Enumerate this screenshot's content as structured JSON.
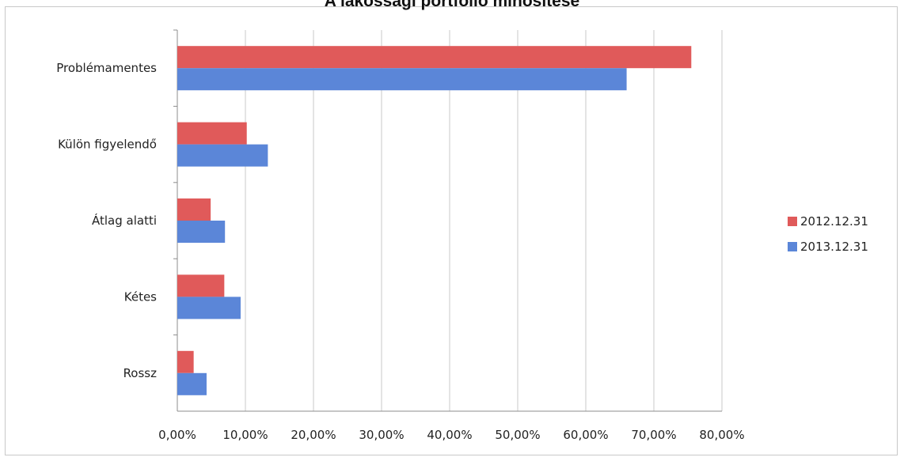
{
  "chart_data": {
    "type": "bar",
    "orientation": "horizontal",
    "title": "A lakossági portfólió minősítése",
    "categories": [
      "Problémamentes",
      "Külön figyelendő",
      "Átlag alatti",
      "Kétes",
      "Rossz"
    ],
    "series": [
      {
        "name": "2012.12.31",
        "color": "#e05a5a",
        "values": [
          75.5,
          10.2,
          4.9,
          6.9,
          2.4
        ]
      },
      {
        "name": "2013.12.31",
        "color": "#5b86d8",
        "values": [
          66.0,
          13.3,
          7.0,
          9.3,
          4.3
        ]
      }
    ],
    "xlim": [
      0,
      80
    ],
    "xticks": [
      "0,00%",
      "10,00%",
      "20,00%",
      "30,00%",
      "40,00%",
      "50,00%",
      "60,00%",
      "70,00%",
      "80,00%"
    ],
    "grid": true,
    "legend_position": "right"
  }
}
